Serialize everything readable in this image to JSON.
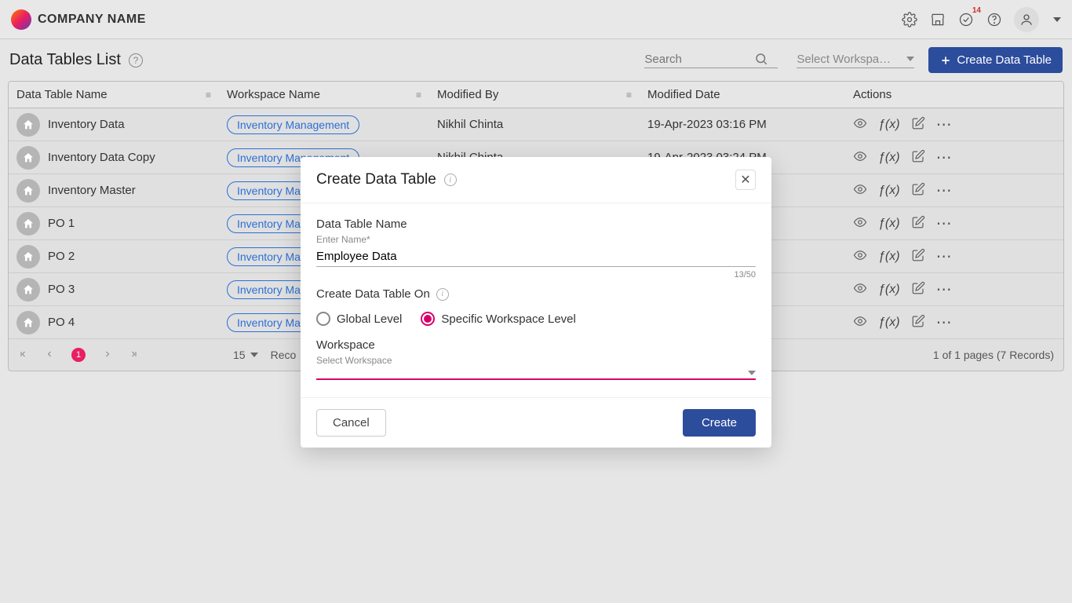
{
  "header": {
    "company": "COMPANY NAME",
    "badge_count": "14"
  },
  "page": {
    "title": "Data Tables List",
    "search_placeholder": "Search",
    "workspace_placeholder": "Select Workspa…",
    "create_button": "Create Data Table"
  },
  "table": {
    "columns": {
      "name": "Data Table Name",
      "workspace": "Workspace Name",
      "modified_by": "Modified By",
      "modified_date": "Modified Date",
      "actions": "Actions"
    },
    "rows": [
      {
        "name": "Inventory Data",
        "workspace": "Inventory Management",
        "modified_by": "Nikhil Chinta",
        "modified_date": "19-Apr-2023 03:16 PM"
      },
      {
        "name": "Inventory Data Copy",
        "workspace": "Inventory Management",
        "modified_by": "Nikhil Chinta",
        "modified_date": "19-Apr-2023 03:24 PM"
      },
      {
        "name": "Inventory Master",
        "workspace": "Inventory Ma",
        "modified_by": "",
        "modified_date": ""
      },
      {
        "name": "PO 1",
        "workspace": "Inventory Ma",
        "modified_by": "",
        "modified_date": ""
      },
      {
        "name": "PO 2",
        "workspace": "Inventory Ma",
        "modified_by": "",
        "modified_date": ""
      },
      {
        "name": "PO 3",
        "workspace": "Inventory Ma",
        "modified_by": "",
        "modified_date": ""
      },
      {
        "name": "PO 4",
        "workspace": "Inventory Ma",
        "modified_by": "",
        "modified_date": ""
      }
    ]
  },
  "pagination": {
    "current_page": "1",
    "per_page": "15",
    "records_label": "Reco",
    "summary": "1 of 1 pages (7 Records)"
  },
  "modal": {
    "title": "Create Data Table",
    "name_label": "Data Table Name",
    "name_sub": "Enter Name*",
    "name_value": "Employee Data",
    "counter": "13/50",
    "scope_label": "Create Data Table On",
    "radio_global": "Global Level",
    "radio_workspace": "Specific Workspace Level",
    "workspace_label": "Workspace",
    "workspace_sub": "Select Workspace",
    "cancel": "Cancel",
    "create": "Create"
  },
  "colors": {
    "primary": "#2c4c9c",
    "accent": "#d6006c",
    "chip_border": "#2c6fd6"
  }
}
